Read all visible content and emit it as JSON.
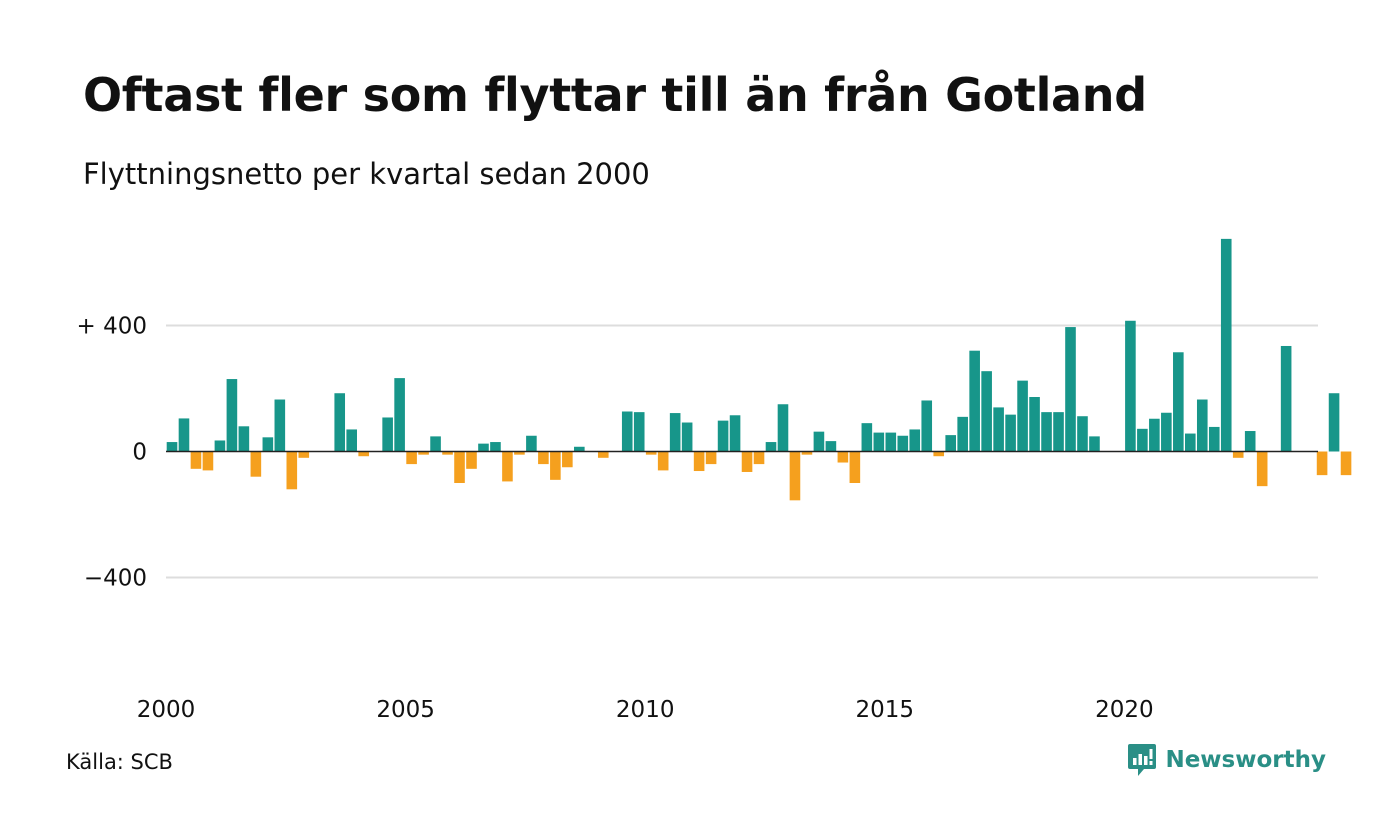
{
  "header": {
    "title": "Oftast fler som flyttar till än från Gotland",
    "subtitle": "Flyttningsnetto per kvartal sedan 2000"
  },
  "footer": {
    "source": "Källa: SCB",
    "brand": "Newsworthy"
  },
  "colors": {
    "positive": "#17968a",
    "negative": "#f5a01e",
    "grid": "#dddddd",
    "zero_line": "#222222",
    "brand": "#2a8f86"
  },
  "chart_data": {
    "type": "bar",
    "title": "Oftast fler som flyttar till än från Gotland",
    "subtitle": "Flyttningsnetto per kvartal sedan 2000",
    "x_start_year": 2000,
    "x_tick_labels": [
      "2000",
      "2005",
      "2010",
      "2015",
      "2020"
    ],
    "x_tick_years": [
      2000,
      2005,
      2010,
      2015,
      2020
    ],
    "y_ticks": [
      400,
      0,
      -400
    ],
    "y_tick_labels": [
      "+ 400",
      "0",
      "−400"
    ],
    "ylim": [
      -700,
      700
    ],
    "grid": true,
    "values": [
      30,
      105,
      -55,
      -60,
      35,
      230,
      80,
      -80,
      45,
      165,
      -120,
      -20,
      0,
      0,
      185,
      70,
      -15,
      0,
      108,
      233,
      -40,
      -10,
      48,
      -10,
      -100,
      -55,
      25,
      30,
      -95,
      -10,
      50,
      -40,
      -90,
      -50,
      15,
      0,
      -20,
      0,
      127,
      125,
      -10,
      -60,
      122,
      92,
      -62,
      -40,
      98,
      115,
      -65,
      -40,
      30,
      150,
      -155,
      -10,
      63,
      33,
      -35,
      -100,
      90,
      60,
      60,
      50,
      70,
      162,
      -15,
      52,
      110,
      320,
      255,
      140,
      117,
      225,
      173,
      125,
      125,
      395,
      112,
      48,
      0,
      0,
      415,
      72,
      104,
      123,
      315,
      57,
      165,
      78,
      675,
      -20,
      65,
      -110,
      0,
      335,
      0,
      0,
      -75,
      185,
      -75
    ]
  }
}
